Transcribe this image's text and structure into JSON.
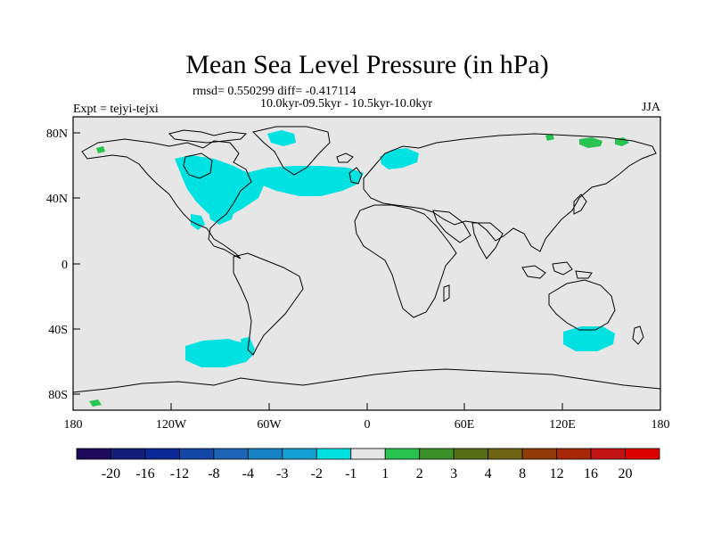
{
  "title": "Mean Sea Level Pressure (in hPa)",
  "stats": "rmsd= 0.550299 diff= -0.417114",
  "period": "10.0kyr-09.5kyr - 10.5kyr-10.0kyr",
  "experiment": "Expt = tejyi-tejxi",
  "season": "JJA",
  "axes": {
    "lat_ticks": [
      "80N",
      "40N",
      "0",
      "40S",
      "80S"
    ],
    "lon_ticks": [
      "180",
      "120W",
      "60W",
      "0",
      "60E",
      "120E",
      "180"
    ]
  },
  "colorbar": {
    "labels": [
      "-20",
      "-16",
      "-12",
      "-8",
      "-4",
      "-3",
      "-2",
      "-1",
      "1",
      "2",
      "3",
      "4",
      "8",
      "12",
      "16",
      "20"
    ],
    "colors": [
      "#1e0a5a",
      "#141e78",
      "#0a2896",
      "#1446a5",
      "#1e64b4",
      "#1482c3",
      "#14a0d2",
      "#00e1e1",
      "#e6e6e6",
      "#28c350",
      "#3c9128",
      "#556e14",
      "#6e6414",
      "#913c0a",
      "#aa280a",
      "#c31414",
      "#dc0000"
    ]
  },
  "colors": {
    "land_ocean": "#e6e6e6",
    "negative_anomaly": "#00e1e1",
    "positive_anomaly": "#28c350",
    "coastline": "#000000"
  }
}
